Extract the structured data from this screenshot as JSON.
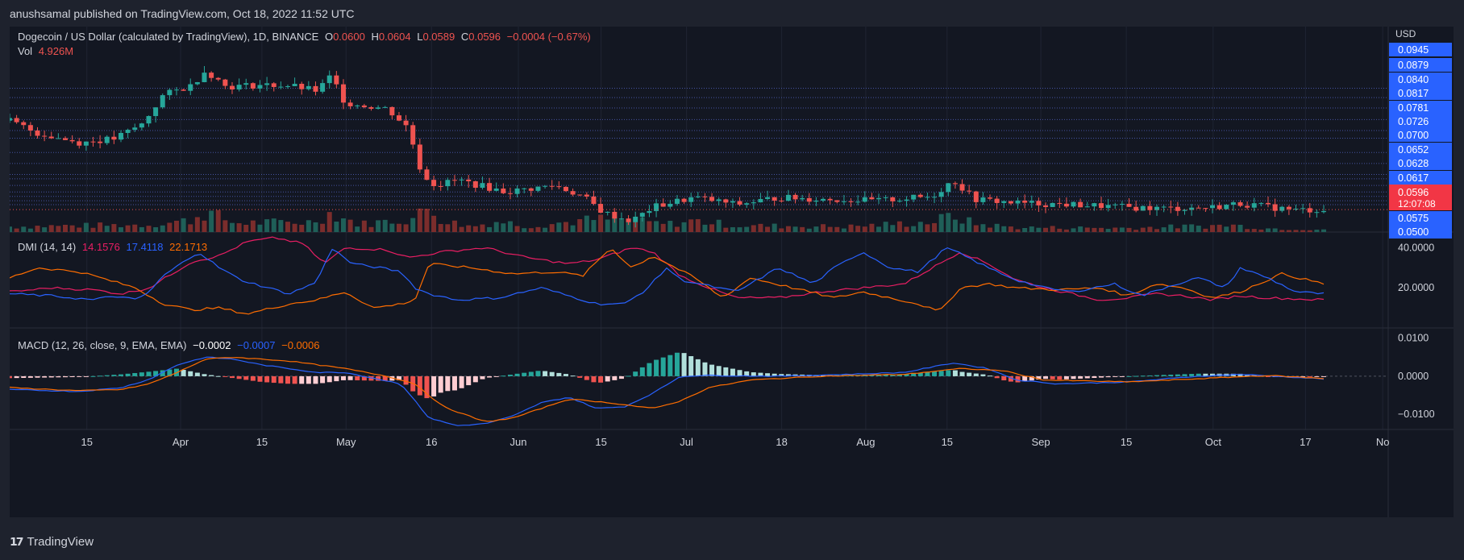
{
  "header": {
    "publisher": "anushsamal published on TradingView.com, Oct 18, 2022 11:52 UTC"
  },
  "footer": {
    "brand": "TradingView",
    "logo_icon": "tradingview-logo-icon"
  },
  "colors": {
    "up": "#26a69a",
    "down": "#ef5350",
    "dmi_plus": "#2962ff",
    "dmi_minus": "#e91e63",
    "adx": "#ff6d00",
    "macd": "#2962ff",
    "signal": "#ff6d00",
    "price_tag": "#f23645",
    "axis_tag": "#2962ff"
  },
  "legend": {
    "main": {
      "symbol": "Dogecoin / US Dollar (calculated by TradingView), 1D, BINANCE",
      "o_label": "O",
      "o": "0.0600",
      "h_label": "H",
      "h": "0.0604",
      "l_label": "L",
      "l": "0.0589",
      "c_label": "C",
      "c": "0.0596",
      "change": "−0.0004 (−0.67%)"
    },
    "vol": {
      "label": "Vol",
      "value": "4.926M"
    },
    "dmi": {
      "label": "DMI (14, 14)",
      "plus_di": "14.1576",
      "minus_di": "17.4118",
      "adx": "22.1713"
    },
    "macd": {
      "label": "MACD (12, 26, close, 9, EMA, EMA)",
      "hist": "−0.0002",
      "macd": "−0.0007",
      "signal": "−0.0006"
    }
  },
  "chart_data": {
    "type": "candlestick",
    "price_axis": {
      "currency": "USD",
      "labels": [
        "0.0945",
        "0.0879",
        "0.0840",
        "0.0817",
        "0.0781",
        "0.0726",
        "0.0700",
        "0.0652",
        "0.0628",
        "0.0617",
        "0.0575",
        "0.0500"
      ],
      "last_price": "0.0596",
      "countdown": "12:07:08"
    },
    "dmi_axis": {
      "labels": [
        "40.0000",
        "20.0000"
      ],
      "ylim": [
        0,
        45
      ]
    },
    "macd_axis": {
      "labels": [
        "0.0100",
        "0.0000",
        "−0.0100"
      ],
      "ylim": [
        -0.014,
        0.011
      ]
    },
    "x_axis": {
      "labels": [
        {
          "text": "15",
          "t": 0.056
        },
        {
          "text": "Apr",
          "t": 0.124
        },
        {
          "text": "15",
          "t": 0.183
        },
        {
          "text": "May",
          "t": 0.244
        },
        {
          "text": "16",
          "t": 0.306
        },
        {
          "text": "Jun",
          "t": 0.369
        },
        {
          "text": "15",
          "t": 0.429
        },
        {
          "text": "Jul",
          "t": 0.491
        },
        {
          "text": "18",
          "t": 0.56
        },
        {
          "text": "Aug",
          "t": 0.621
        },
        {
          "text": "15",
          "t": 0.68
        },
        {
          "text": "Sep",
          "t": 0.748
        },
        {
          "text": "15",
          "t": 0.81
        },
        {
          "text": "Oct",
          "t": 0.873
        },
        {
          "text": "17",
          "t": 0.94
        },
        {
          "text": "No",
          "t": 0.996
        }
      ]
    },
    "close_keyframes": [
      [
        0,
        0.0758
      ],
      [
        0.02,
        0.0735
      ],
      [
        0.05,
        0.0718
      ],
      [
        0.075,
        0.0725
      ],
      [
        0.095,
        0.0752
      ],
      [
        0.11,
        0.0805
      ],
      [
        0.13,
        0.0822
      ],
      [
        0.14,
        0.085
      ],
      [
        0.155,
        0.082
      ],
      [
        0.18,
        0.0823
      ],
      [
        0.2,
        0.0822
      ],
      [
        0.22,
        0.0812
      ],
      [
        0.23,
        0.084
      ],
      [
        0.24,
        0.079
      ],
      [
        0.27,
        0.078
      ],
      [
        0.285,
        0.0745
      ],
      [
        0.295,
        0.066
      ],
      [
        0.305,
        0.064
      ],
      [
        0.32,
        0.065
      ],
      [
        0.355,
        0.0628
      ],
      [
        0.39,
        0.064
      ],
      [
        0.41,
        0.062
      ],
      [
        0.425,
        0.059
      ],
      [
        0.445,
        0.0575
      ],
      [
        0.46,
        0.06
      ],
      [
        0.475,
        0.061
      ],
      [
        0.49,
        0.0618
      ],
      [
        0.52,
        0.0605
      ],
      [
        0.55,
        0.0618
      ],
      [
        0.58,
        0.0615
      ],
      [
        0.62,
        0.0612
      ],
      [
        0.66,
        0.062
      ],
      [
        0.675,
        0.065
      ],
      [
        0.69,
        0.0615
      ],
      [
        0.72,
        0.0608
      ],
      [
        0.76,
        0.0605
      ],
      [
        0.8,
        0.06
      ],
      [
        0.83,
        0.0598
      ],
      [
        0.86,
        0.06
      ],
      [
        0.88,
        0.0607
      ],
      [
        0.92,
        0.0595
      ],
      [
        0.94,
        0.0596
      ]
    ],
    "vol_keyframes": [
      [
        0,
        1.2
      ],
      [
        0.1,
        1.6
      ],
      [
        0.13,
        2.6
      ],
      [
        0.14,
        4.5
      ],
      [
        0.16,
        2.0
      ],
      [
        0.215,
        2.2
      ],
      [
        0.23,
        4.2
      ],
      [
        0.25,
        1.7
      ],
      [
        0.29,
        3.0
      ],
      [
        0.3,
        5.5
      ],
      [
        0.31,
        2.5
      ],
      [
        0.33,
        1.2
      ],
      [
        0.35,
        2.4
      ],
      [
        0.37,
        1.3
      ],
      [
        0.42,
        2.8
      ],
      [
        0.44,
        2.6
      ],
      [
        0.47,
        1.7
      ],
      [
        0.49,
        2.5
      ],
      [
        0.52,
        1.4
      ],
      [
        0.6,
        1.2
      ],
      [
        0.66,
        2.2
      ],
      [
        0.675,
        3.6
      ],
      [
        0.69,
        1.8
      ],
      [
        0.72,
        1.0
      ],
      [
        0.8,
        0.9
      ],
      [
        0.875,
        1.5
      ],
      [
        0.9,
        0.8
      ],
      [
        0.94,
        0.6
      ]
    ],
    "dmi_plus_keyframes": [
      [
        0,
        17
      ],
      [
        0.03,
        16
      ],
      [
        0.06,
        14
      ],
      [
        0.075,
        16
      ],
      [
        0.09,
        14
      ],
      [
        0.1,
        18
      ],
      [
        0.11,
        26
      ],
      [
        0.135,
        38
      ],
      [
        0.15,
        30
      ],
      [
        0.165,
        24
      ],
      [
        0.185,
        20
      ],
      [
        0.2,
        17
      ],
      [
        0.22,
        23
      ],
      [
        0.23,
        40
      ],
      [
        0.245,
        32
      ],
      [
        0.265,
        30
      ],
      [
        0.28,
        28
      ],
      [
        0.29,
        20
      ],
      [
        0.3,
        17
      ],
      [
        0.32,
        14
      ],
      [
        0.35,
        15
      ],
      [
        0.38,
        20
      ],
      [
        0.4,
        16
      ],
      [
        0.42,
        12
      ],
      [
        0.44,
        12
      ],
      [
        0.455,
        19
      ],
      [
        0.47,
        30
      ],
      [
        0.48,
        24
      ],
      [
        0.5,
        21
      ],
      [
        0.52,
        18
      ],
      [
        0.55,
        30
      ],
      [
        0.575,
        22
      ],
      [
        0.59,
        30
      ],
      [
        0.61,
        38
      ],
      [
        0.63,
        30
      ],
      [
        0.65,
        28
      ],
      [
        0.67,
        40
      ],
      [
        0.68,
        37
      ],
      [
        0.7,
        30
      ],
      [
        0.72,
        24
      ],
      [
        0.74,
        20
      ],
      [
        0.76,
        18
      ],
      [
        0.79,
        22
      ],
      [
        0.81,
        16
      ],
      [
        0.83,
        21
      ],
      [
        0.85,
        25
      ],
      [
        0.87,
        20
      ],
      [
        0.88,
        30
      ],
      [
        0.9,
        25
      ],
      [
        0.92,
        18
      ],
      [
        0.94,
        17
      ]
    ],
    "dmi_minus_keyframes": [
      [
        0,
        18
      ],
      [
        0.03,
        20
      ],
      [
        0.06,
        19
      ],
      [
        0.08,
        17
      ],
      [
        0.1,
        20
      ],
      [
        0.13,
        33
      ],
      [
        0.15,
        36
      ],
      [
        0.17,
        43
      ],
      [
        0.19,
        45
      ],
      [
        0.21,
        42
      ],
      [
        0.225,
        32
      ],
      [
        0.24,
        40
      ],
      [
        0.27,
        39
      ],
      [
        0.285,
        35
      ],
      [
        0.31,
        38
      ],
      [
        0.34,
        40
      ],
      [
        0.37,
        35
      ],
      [
        0.4,
        32
      ],
      [
        0.42,
        34
      ],
      [
        0.445,
        40
      ],
      [
        0.46,
        38
      ],
      [
        0.48,
        26
      ],
      [
        0.5,
        20
      ],
      [
        0.52,
        15
      ],
      [
        0.55,
        15
      ],
      [
        0.58,
        18
      ],
      [
        0.61,
        20
      ],
      [
        0.64,
        22
      ],
      [
        0.66,
        30
      ],
      [
        0.68,
        38
      ],
      [
        0.7,
        32
      ],
      [
        0.72,
        24
      ],
      [
        0.74,
        20
      ],
      [
        0.76,
        17
      ],
      [
        0.78,
        14
      ],
      [
        0.8,
        15
      ],
      [
        0.82,
        17
      ],
      [
        0.84,
        16
      ],
      [
        0.86,
        14
      ],
      [
        0.88,
        16
      ],
      [
        0.9,
        15
      ],
      [
        0.94,
        14
      ]
    ],
    "adx_keyframes": [
      [
        0,
        25
      ],
      [
        0.02,
        30
      ],
      [
        0.05,
        28
      ],
      [
        0.07,
        24
      ],
      [
        0.09,
        20
      ],
      [
        0.11,
        12
      ],
      [
        0.13,
        9
      ],
      [
        0.15,
        10
      ],
      [
        0.17,
        7
      ],
      [
        0.2,
        12
      ],
      [
        0.22,
        14
      ],
      [
        0.24,
        18
      ],
      [
        0.26,
        10
      ],
      [
        0.28,
        12
      ],
      [
        0.29,
        14
      ],
      [
        0.3,
        32
      ],
      [
        0.33,
        30
      ],
      [
        0.36,
        27
      ],
      [
        0.39,
        28
      ],
      [
        0.41,
        26
      ],
      [
        0.43,
        40
      ],
      [
        0.445,
        30
      ],
      [
        0.46,
        36
      ],
      [
        0.49,
        25
      ],
      [
        0.51,
        15
      ],
      [
        0.53,
        25
      ],
      [
        0.56,
        20
      ],
      [
        0.59,
        15
      ],
      [
        0.61,
        18
      ],
      [
        0.63,
        15
      ],
      [
        0.65,
        12
      ],
      [
        0.665,
        8
      ],
      [
        0.68,
        20
      ],
      [
        0.7,
        22
      ],
      [
        0.72,
        20
      ],
      [
        0.75,
        19
      ],
      [
        0.78,
        20
      ],
      [
        0.8,
        16
      ],
      [
        0.82,
        22
      ],
      [
        0.84,
        20
      ],
      [
        0.86,
        15
      ],
      [
        0.88,
        18
      ],
      [
        0.91,
        27
      ],
      [
        0.94,
        22
      ]
    ],
    "macd_line_keyframes": [
      [
        0,
        -0.0035
      ],
      [
        0.05,
        -0.004
      ],
      [
        0.08,
        -0.003
      ],
      [
        0.1,
        -0.0008
      ],
      [
        0.12,
        0.003
      ],
      [
        0.14,
        0.005
      ],
      [
        0.16,
        0.0045
      ],
      [
        0.18,
        0.003
      ],
      [
        0.2,
        0.002
      ],
      [
        0.22,
        0.001
      ],
      [
        0.24,
        0.001
      ],
      [
        0.26,
        -0.0005
      ],
      [
        0.28,
        -0.002
      ],
      [
        0.3,
        -0.011
      ],
      [
        0.32,
        -0.013
      ],
      [
        0.34,
        -0.0125
      ],
      [
        0.36,
        -0.0105
      ],
      [
        0.38,
        -0.007
      ],
      [
        0.4,
        -0.0055
      ],
      [
        0.42,
        -0.0085
      ],
      [
        0.44,
        -0.008
      ],
      [
        0.46,
        -0.0045
      ],
      [
        0.48,
        0.0
      ],
      [
        0.5,
        0.0002
      ],
      [
        0.55,
        0.0
      ],
      [
        0.6,
        0.0005
      ],
      [
        0.64,
        0.001
      ],
      [
        0.675,
        0.0035
      ],
      [
        0.7,
        0.002
      ],
      [
        0.72,
        -0.001
      ],
      [
        0.75,
        -0.002
      ],
      [
        0.8,
        -0.0015
      ],
      [
        0.85,
        0.0
      ],
      [
        0.88,
        0.0005
      ],
      [
        0.94,
        -0.0007
      ]
    ],
    "signal_keyframes": [
      [
        0,
        -0.003
      ],
      [
        0.05,
        -0.0038
      ],
      [
        0.08,
        -0.0035
      ],
      [
        0.1,
        -0.002
      ],
      [
        0.12,
        0.001
      ],
      [
        0.14,
        0.0045
      ],
      [
        0.16,
        0.005
      ],
      [
        0.2,
        0.004
      ],
      [
        0.24,
        0.002
      ],
      [
        0.27,
        0.0
      ],
      [
        0.29,
        -0.002
      ],
      [
        0.31,
        -0.008
      ],
      [
        0.34,
        -0.012
      ],
      [
        0.36,
        -0.011
      ],
      [
        0.38,
        -0.0085
      ],
      [
        0.4,
        -0.006
      ],
      [
        0.43,
        -0.007
      ],
      [
        0.46,
        -0.0085
      ],
      [
        0.48,
        -0.0065
      ],
      [
        0.5,
        -0.003
      ],
      [
        0.53,
        -0.001
      ],
      [
        0.58,
        0.0
      ],
      [
        0.64,
        0.0005
      ],
      [
        0.68,
        0.002
      ],
      [
        0.71,
        0.0015
      ],
      [
        0.74,
        -0.001
      ],
      [
        0.8,
        -0.0015
      ],
      [
        0.86,
        -0.0005
      ],
      [
        0.9,
        0.0002
      ],
      [
        0.94,
        -0.0006
      ]
    ]
  }
}
